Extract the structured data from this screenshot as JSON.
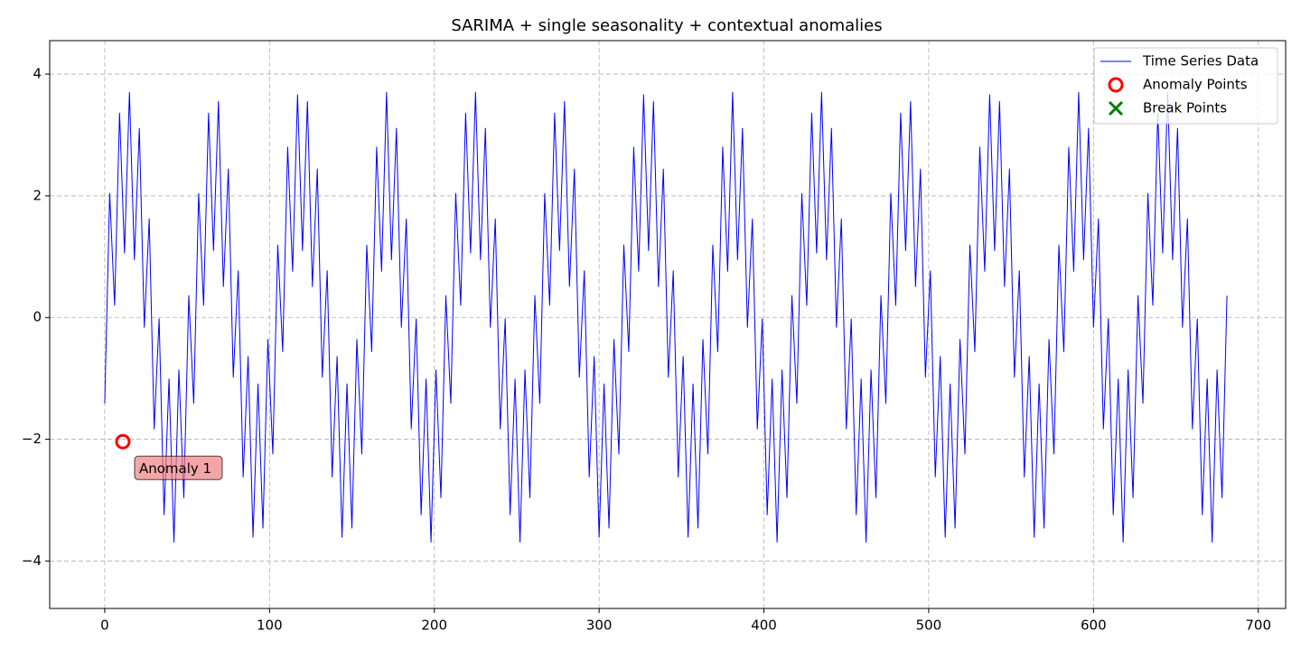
{
  "chart_data": {
    "type": "line",
    "title": "SARIMA + single seasonality + contextual anomalies",
    "x": [
      0,
      3,
      6,
      9,
      12,
      15,
      18,
      21,
      24,
      27,
      30,
      33,
      36,
      39,
      42,
      45,
      48,
      51,
      54,
      57,
      60,
      63,
      66,
      69,
      72,
      75,
      78,
      81,
      84,
      87,
      90,
      93,
      96,
      99,
      102,
      105,
      108,
      111,
      114,
      117,
      120,
      123,
      126,
      129,
      132,
      135,
      138,
      141,
      144,
      147,
      150,
      153,
      156,
      159,
      162,
      165,
      168,
      171,
      174,
      177,
      180,
      183,
      186,
      189,
      192,
      195,
      198,
      201,
      204,
      207,
      210,
      213,
      216,
      219,
      222,
      225,
      228,
      231,
      234,
      237,
      240,
      243,
      246,
      249,
      252,
      255,
      258,
      261,
      264,
      267,
      270,
      273,
      276,
      279,
      282,
      285,
      288,
      291,
      294,
      297,
      300,
      303,
      306,
      309,
      312,
      315,
      318,
      321,
      324,
      327,
      330,
      333,
      336,
      339,
      342,
      345,
      348,
      351,
      354,
      357,
      360,
      363,
      366,
      369,
      372,
      375,
      378,
      381,
      384,
      387,
      390,
      393,
      396,
      399,
      402,
      405,
      408,
      411,
      414,
      417,
      420,
      423,
      426,
      429,
      432,
      435,
      438,
      441,
      444,
      447,
      450,
      453,
      456,
      459,
      462,
      465,
      468,
      471,
      474,
      477,
      480,
      483,
      486,
      489,
      492,
      495,
      498,
      501,
      504,
      507,
      510,
      513,
      516,
      519,
      522,
      525,
      528,
      531,
      534,
      537,
      540,
      543,
      546,
      549,
      552,
      555,
      558,
      561,
      564,
      567,
      570,
      573,
      576,
      579,
      582,
      585,
      588,
      591,
      594,
      597,
      600,
      603,
      606,
      609,
      612,
      615,
      618,
      621,
      624,
      627,
      630,
      633,
      636,
      639,
      642,
      645,
      648,
      651,
      654,
      657,
      660,
      663,
      666,
      669,
      672,
      675,
      678,
      681
    ],
    "series": [
      {
        "name": "Time Series Data",
        "color": "#0000ff",
        "marker": "line",
        "values": [
          -1.41,
          2.04,
          0.2,
          3.36,
          1.06,
          3.7,
          0.95,
          3.11,
          -0.16,
          1.62,
          -1.83,
          -0.02,
          -3.24,
          -1.01,
          -3.69,
          -0.86,
          -2.96,
          0.36,
          -1.41,
          2.04,
          0.2,
          3.36,
          1.1,
          3.55,
          0.51,
          2.44,
          -0.98,
          0.77,
          -2.62,
          -0.64,
          -3.61,
          -1.09,
          -3.46,
          -0.36,
          -2.24,
          1.19,
          -0.56,
          2.8,
          0.76,
          3.66,
          1.1,
          3.55,
          0.51,
          2.44,
          -0.98,
          0.77,
          -2.62,
          -0.64,
          -3.61,
          -1.09,
          -3.46,
          -0.36,
          -2.24,
          1.19,
          -0.56,
          2.8,
          0.76,
          3.7,
          0.95,
          3.11,
          -0.16,
          1.62,
          -1.83,
          -0.02,
          -3.24,
          -1.01,
          -3.69,
          -0.86,
          -2.96,
          0.36,
          -1.41,
          2.04,
          0.2,
          3.36,
          1.06,
          3.7,
          0.95,
          3.11,
          -0.16,
          1.62,
          -1.83,
          -0.02,
          -3.24,
          -1.01,
          -3.69,
          -0.86,
          -2.96,
          0.36,
          -1.41,
          2.04,
          0.2,
          3.36,
          1.1,
          3.55,
          0.51,
          2.44,
          -0.98,
          0.77,
          -2.62,
          -0.64,
          -3.61,
          -1.09,
          -3.46,
          -0.36,
          -2.24,
          1.19,
          -0.56,
          2.8,
          0.76,
          3.66,
          1.1,
          3.55,
          0.51,
          2.44,
          -0.98,
          0.77,
          -2.62,
          -0.64,
          -3.61,
          -1.09,
          -3.46,
          -0.36,
          -2.24,
          1.19,
          -0.56,
          2.8,
          0.76,
          3.7,
          0.95,
          3.11,
          -0.16,
          1.62,
          -1.83,
          -0.02,
          -3.24,
          -1.01,
          -3.69,
          -0.86,
          -2.96,
          0.36,
          -1.41,
          2.04,
          0.2,
          3.36,
          1.06,
          3.7,
          0.95,
          3.11,
          -0.16,
          1.62,
          -1.83,
          -0.02,
          -3.24,
          -1.01,
          -3.69,
          -0.86,
          -2.96,
          0.36,
          -1.41,
          2.04,
          0.2,
          3.36,
          1.1,
          3.55,
          0.51,
          2.44,
          -0.98,
          0.77,
          -2.62,
          -0.64,
          -3.61,
          -1.09,
          -3.46,
          -0.36,
          -2.24,
          1.19,
          -0.56,
          2.8,
          0.76,
          3.66,
          1.1,
          3.55,
          0.51,
          2.44,
          -0.98,
          0.77,
          -2.62,
          -0.64,
          -3.61,
          -1.09,
          -3.46,
          -0.36,
          -2.24,
          1.19,
          -0.56,
          2.8,
          0.76,
          3.7,
          0.95,
          3.11,
          -0.16,
          1.62,
          -1.83,
          -0.02,
          -3.24,
          -1.01,
          -3.69,
          -0.86,
          -2.96,
          0.36,
          -1.41,
          2.04,
          0.2,
          3.36,
          1.06,
          3.7,
          0.95,
          3.11,
          -0.16,
          1.62,
          -1.83,
          -0.02,
          -3.24,
          -1.01,
          -3.69,
          -0.86,
          -2.96,
          0.36
        ]
      },
      {
        "name": "Anomaly Points",
        "color": "#ff0000",
        "marker": "circle",
        "x": [
          11
        ],
        "values": [
          -2.04
        ]
      },
      {
        "name": "Break Points",
        "color": "#008000",
        "marker": "cross",
        "x": [],
        "values": []
      }
    ],
    "annotations": [
      "Anomaly 1"
    ],
    "xlim": [
      -33.4,
      716.6
    ],
    "ylim": [
      -4.78,
      4.55
    ],
    "xticks": [
      0,
      100,
      200,
      300,
      400,
      500,
      600,
      700
    ],
    "yticks": [
      {
        "value": -4,
        "label": "−4"
      },
      {
        "value": -2,
        "label": "−2"
      },
      0,
      2,
      4
    ],
    "grid": true,
    "legend": "upper right"
  }
}
